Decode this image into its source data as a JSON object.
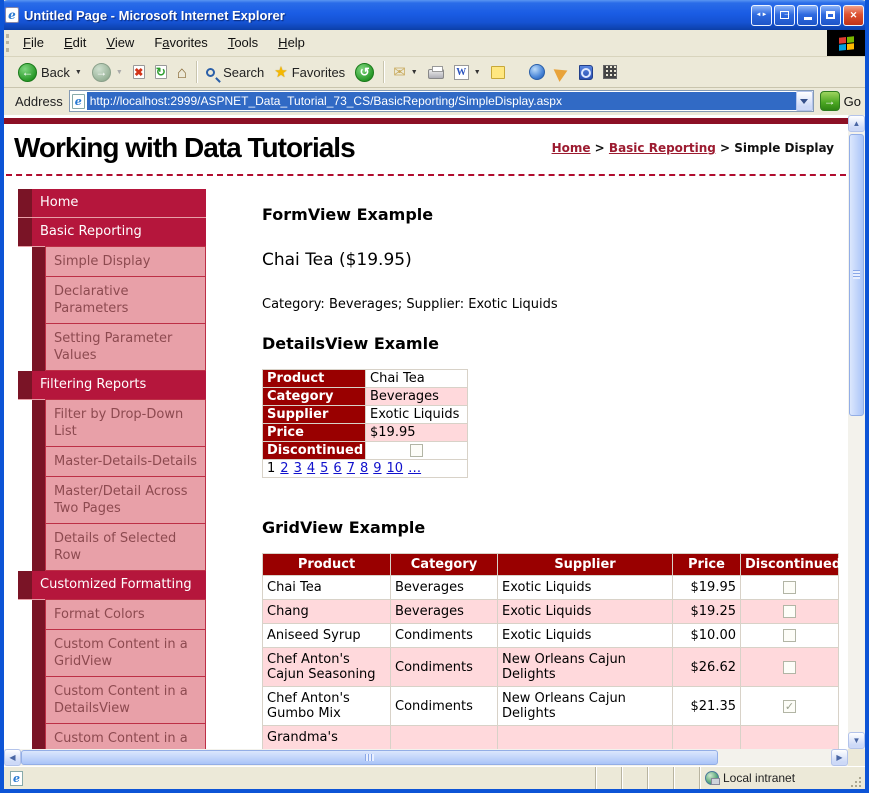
{
  "window": {
    "title": "Untitled Page - Microsoft Internet Explorer"
  },
  "menubar": {
    "items": [
      {
        "label": "File",
        "accel": 0
      },
      {
        "label": "Edit",
        "accel": 0
      },
      {
        "label": "View",
        "accel": 0
      },
      {
        "label": "Favorites",
        "accel": 1
      },
      {
        "label": "Tools",
        "accel": 0
      },
      {
        "label": "Help",
        "accel": 0
      }
    ]
  },
  "toolbar": {
    "back_label": "Back",
    "search_label": "Search",
    "favorites_label": "Favorites"
  },
  "addressbar": {
    "label": "Address",
    "url": "http://localhost:2999/ASPNET_Data_Tutorial_73_CS/BasicReporting/SimpleDisplay.aspx",
    "go_label": "Go"
  },
  "page": {
    "title": "Working with Data Tutorials",
    "breadcrumb": [
      {
        "label": "Home",
        "link": true
      },
      {
        "label": "Basic Reporting",
        "link": true
      },
      {
        "label": "Simple Display",
        "link": false
      }
    ],
    "menu": [
      {
        "label": "Home",
        "level": 1
      },
      {
        "label": "Basic Reporting",
        "level": 1
      },
      {
        "label": "Simple Display",
        "level": 2
      },
      {
        "label": "Declarative Parameters",
        "level": 2
      },
      {
        "label": "Setting Parameter Values",
        "level": 2
      },
      {
        "label": "Filtering Reports",
        "level": 1
      },
      {
        "label": "Filter by Drop-Down List",
        "level": 2
      },
      {
        "label": "Master-Details-Details",
        "level": 2
      },
      {
        "label": "Master/Detail Across Two Pages",
        "level": 2
      },
      {
        "label": "Details of Selected Row",
        "level": 2
      },
      {
        "label": "Customized Formatting",
        "level": 1
      },
      {
        "label": "Format Colors",
        "level": 2
      },
      {
        "label": "Custom Content in a GridView",
        "level": 2
      },
      {
        "label": "Custom Content in a DetailsView",
        "level": 2
      },
      {
        "label": "Custom Content in a",
        "level": 2
      }
    ],
    "main": {
      "formview_heading": "FormView Example",
      "formview_title": "Chai Tea ($19.95)",
      "formview_meta": "Category: Beverages; Supplier: Exotic Liquids",
      "detailsview_heading": "DetailsView Examle",
      "detailsview_fields": [
        {
          "label": "Product",
          "value": "Chai Tea"
        },
        {
          "label": "Category",
          "value": "Beverages"
        },
        {
          "label": "Supplier",
          "value": "Exotic Liquids"
        },
        {
          "label": "Price",
          "value": "$19.95"
        },
        {
          "label": "Discontinued",
          "checkbox": true,
          "checked": false
        }
      ],
      "pager": {
        "current": "1",
        "pages": [
          "2",
          "3",
          "4",
          "5",
          "6",
          "7",
          "8",
          "9",
          "10",
          "…"
        ]
      },
      "gridview_heading": "GridView Example",
      "gridview_columns": [
        "Product",
        "Category",
        "Supplier",
        "Price",
        "Discontinued"
      ],
      "gridview_rows": [
        {
          "product": "Chai Tea",
          "category": "Beverages",
          "supplier": "Exotic Liquids",
          "price": "$19.95",
          "discontinued": false
        },
        {
          "product": "Chang",
          "category": "Beverages",
          "supplier": "Exotic Liquids",
          "price": "$19.25",
          "discontinued": false
        },
        {
          "product": "Aniseed Syrup",
          "category": "Condiments",
          "supplier": "Exotic Liquids",
          "price": "$10.00",
          "discontinued": false
        },
        {
          "product": "Chef Anton's Cajun Seasoning",
          "category": "Condiments",
          "supplier": "New Orleans Cajun Delights",
          "price": "$26.62",
          "discontinued": false
        },
        {
          "product": "Chef Anton's Gumbo Mix",
          "category": "Condiments",
          "supplier": "New Orleans Cajun Delights",
          "price": "$21.35",
          "discontinued": true
        },
        {
          "product": "Grandma's",
          "category": "",
          "supplier": "",
          "price": "",
          "discontinued": false,
          "partial": true
        }
      ]
    }
  },
  "statusbar": {
    "zone_label": "Local intranet"
  },
  "colors": {
    "title_gradient_top": "#5a96f2",
    "menu_l1_bg": "#b5163c",
    "menu_l1_block": "#7a1426",
    "menu_l2_bg": "#e8a0a8",
    "menu_l2_text": "#8d4a50",
    "table_header_bg": "#990000",
    "row_alt_pink": "#ffd9dc",
    "dashed_divider": "#b00c2f",
    "breadcrumb_link": "#9c1b30",
    "pager_link": "#1111cc",
    "selection_bg": "#316ac5"
  }
}
